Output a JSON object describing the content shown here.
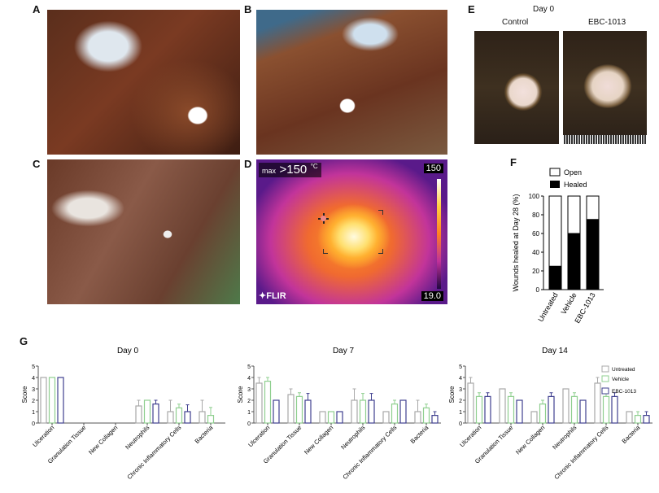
{
  "panels": {
    "a": {
      "label": "A"
    },
    "b": {
      "label": "B"
    },
    "c": {
      "label": "C"
    },
    "d": {
      "label": "D",
      "max_prefix": "max",
      "max_value": ">150",
      "unit": "°C",
      "scale_top": "150",
      "scale_bottom": "19.0",
      "brand": "FLIR"
    },
    "e": {
      "label": "E",
      "title": "Day 0",
      "left_caption": "Control",
      "right_caption": "EBC-1013"
    },
    "f": {
      "label": "F"
    },
    "g": {
      "label": "G"
    }
  },
  "colors": {
    "untreated": "#a8a8a8",
    "vehicle": "#8fcf8f",
    "ebc": "#3f3f8f",
    "healed": "#000000",
    "open": "#ffffff"
  },
  "chart_data": [
    {
      "type": "bar",
      "stacked": true,
      "panel": "F",
      "categories": [
        "Untreated",
        "Vehicle",
        "EBC-1013"
      ],
      "series": [
        {
          "name": "Healed",
          "values": [
            25,
            60,
            75
          ]
        },
        {
          "name": "Open",
          "values": [
            75,
            40,
            25
          ]
        }
      ],
      "ylabel": "Wounds healed at Day 28 (%)",
      "ylim": [
        0,
        100
      ],
      "yticks": [
        "0",
        "20",
        "40",
        "60",
        "80",
        "100"
      ],
      "legend": "top",
      "legend_entries": [
        "Open",
        "Healed"
      ]
    },
    {
      "type": "bar",
      "panel": "G",
      "title": "Day 0",
      "ylabel": "Score",
      "ylim": [
        0,
        5
      ],
      "yticks": [
        "0",
        "1",
        "2",
        "3",
        "4",
        "5"
      ],
      "categories": [
        "Ulceration",
        "Granulation Tissue",
        "New Collagen",
        "Neutrophils",
        "Chronic Inflammatory Cells",
        "Bacteria"
      ],
      "series": [
        {
          "name": "Untreated",
          "values": [
            4,
            0,
            0,
            1.5,
            1,
            1
          ],
          "errors": [
            0,
            0,
            0,
            0.5,
            1,
            1
          ]
        },
        {
          "name": "Vehicle",
          "values": [
            4,
            0,
            0,
            2,
            1.33,
            0.67
          ],
          "errors": [
            0,
            0,
            0,
            0,
            0.33,
            0.7
          ]
        },
        {
          "name": "EBC-1013",
          "values": [
            4,
            0,
            0,
            1.67,
            1,
            0
          ],
          "errors": [
            0,
            0,
            0,
            0.33,
            0.6,
            0
          ]
        }
      ]
    },
    {
      "type": "bar",
      "panel": "G",
      "title": "Day 7",
      "ylabel": "Score",
      "ylim": [
        0,
        5
      ],
      "yticks": [
        "0",
        "1",
        "2",
        "3",
        "4",
        "5"
      ],
      "categories": [
        "Ulceration",
        "Granulation Tissue",
        "New Collagen",
        "Neutrophils",
        "Chronic Inflammatory Cells",
        "Bacteria"
      ],
      "series": [
        {
          "name": "Untreated",
          "values": [
            3.5,
            2.5,
            1,
            2,
            1,
            1
          ],
          "errors": [
            0.5,
            0.5,
            0,
            1,
            0,
            1
          ]
        },
        {
          "name": "Vehicle",
          "values": [
            3.67,
            2.33,
            1,
            2,
            1.67,
            1.33
          ],
          "errors": [
            0.33,
            0.33,
            0,
            0.6,
            0.33,
            0.33
          ]
        },
        {
          "name": "EBC-1013",
          "values": [
            2,
            2,
            1,
            2,
            2,
            0.67
          ],
          "errors": [
            0,
            0.6,
            0,
            0.6,
            0,
            0.33
          ]
        }
      ]
    },
    {
      "type": "bar",
      "panel": "G",
      "title": "Day 14",
      "ylabel": "Score",
      "ylim": [
        0,
        5
      ],
      "yticks": [
        "0",
        "1",
        "2",
        "3",
        "4",
        "5"
      ],
      "legend": "top-right",
      "categories": [
        "Ulceration",
        "Granulation Tissue",
        "New Collagen",
        "Neutrophils",
        "Chronic Inflammatory Cells",
        "Bacteria"
      ],
      "series": [
        {
          "name": "Untreated",
          "values": [
            3.5,
            3,
            1,
            3,
            3.5,
            1
          ],
          "errors": [
            0.5,
            0,
            0,
            0,
            0.5,
            0
          ]
        },
        {
          "name": "Vehicle",
          "values": [
            2.33,
            2.33,
            1.67,
            2.33,
            2.33,
            0.67
          ],
          "errors": [
            0.33,
            0.33,
            0.33,
            0.33,
            0.67,
            0.33
          ]
        },
        {
          "name": "EBC-1013",
          "values": [
            2.33,
            2,
            2.33,
            2,
            2.33,
            0.67
          ],
          "errors": [
            0.33,
            0,
            0.33,
            0,
            0.33,
            0.33
          ]
        }
      ]
    }
  ]
}
